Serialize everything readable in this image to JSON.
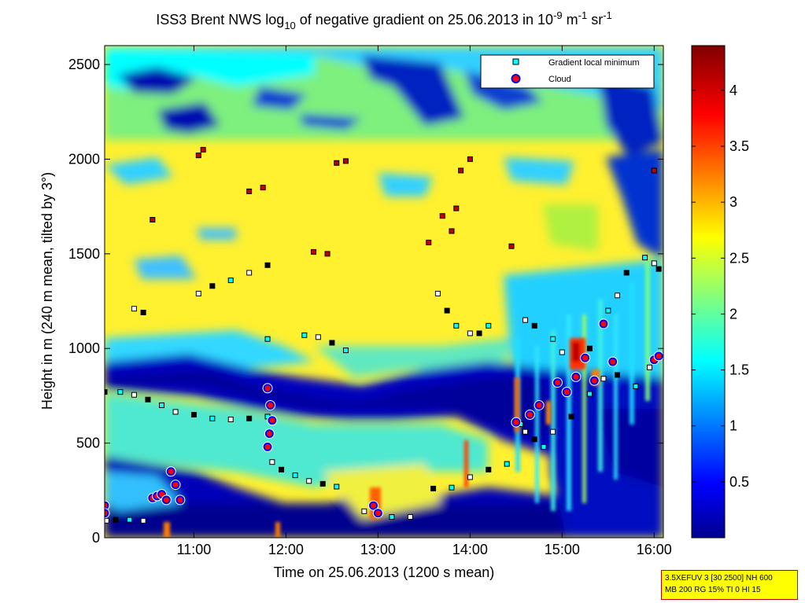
{
  "chart_data": {
    "type": "heatmap",
    "title": {
      "prefix": "ISS3 Brent NWS log",
      "prefix_sub": "10",
      "middle": " of negative gradient on 25.06.2013 in 10",
      "sup1": "-9",
      "unit1": " m",
      "sup2": "-1",
      "unit2": " sr",
      "sup3": "-1"
    },
    "xlabel": "Time on 25.06.2013 (1200 s mean)",
    "ylabel": "Height in m (240 m mean, tilted by 3°)",
    "x_ticks": [
      "11:00",
      "12:00",
      "13:00",
      "14:00",
      "15:00",
      "16:00"
    ],
    "x_tick_hours": [
      11,
      12,
      13,
      14,
      15,
      16
    ],
    "xlim_hours": [
      10.03,
      16.1
    ],
    "y_ticks": [
      0,
      500,
      1000,
      1500,
      2000,
      2500
    ],
    "y_tick_labels": [
      "0",
      "500",
      "1000",
      "1500",
      "2000",
      "2500"
    ],
    "ylim": [
      0,
      2600
    ],
    "colorbar": {
      "ticks": [
        0.5,
        1,
        1.5,
        2,
        2.5,
        3,
        3.5,
        4
      ],
      "tick_labels": [
        "0.5",
        "1",
        "1.5",
        "2",
        "2.5",
        "3",
        "3.5",
        "4"
      ],
      "range": [
        0,
        4.4
      ],
      "colormap": "jet"
    },
    "legend": [
      {
        "label": "Gradient local minimum",
        "marker": "square",
        "color": "#00ffff",
        "edge": "#000000"
      },
      {
        "label": "Cloud",
        "marker": "circle",
        "color": "#ff0000",
        "edge": "#0000ff"
      }
    ],
    "series": [
      {
        "name": "Gradient local minimum",
        "points": [
          [
            10.05,
            90
          ],
          [
            10.15,
            95
          ],
          [
            10.3,
            95
          ],
          [
            10.45,
            90
          ],
          [
            10.03,
            770
          ],
          [
            10.2,
            770
          ],
          [
            10.35,
            755
          ],
          [
            10.5,
            730
          ],
          [
            10.65,
            700
          ],
          [
            10.8,
            665
          ],
          [
            11.0,
            650
          ],
          [
            11.2,
            630
          ],
          [
            11.4,
            625
          ],
          [
            11.6,
            630
          ],
          [
            11.8,
            640
          ],
          [
            11.85,
            400
          ],
          [
            11.95,
            360
          ],
          [
            12.1,
            330
          ],
          [
            12.25,
            300
          ],
          [
            12.4,
            285
          ],
          [
            12.55,
            270
          ],
          [
            12.85,
            140
          ],
          [
            13.0,
            120
          ],
          [
            13.15,
            110
          ],
          [
            13.35,
            110
          ],
          [
            13.6,
            260
          ],
          [
            13.8,
            265
          ],
          [
            14.0,
            320
          ],
          [
            14.2,
            360
          ],
          [
            14.4,
            390
          ],
          [
            11.05,
            1290
          ],
          [
            11.2,
            1330
          ],
          [
            11.4,
            1360
          ],
          [
            11.6,
            1400
          ],
          [
            11.8,
            1440
          ],
          [
            12.2,
            1070
          ],
          [
            12.35,
            1060
          ],
          [
            12.5,
            1030
          ],
          [
            12.65,
            990
          ],
          [
            13.65,
            1290
          ],
          [
            13.75,
            1200
          ],
          [
            13.85,
            1120
          ],
          [
            14.0,
            1080
          ],
          [
            14.1,
            1080
          ],
          [
            14.2,
            1120
          ],
          [
            10.35,
            1210
          ],
          [
            10.45,
            1190
          ],
          [
            11.8,
            1050
          ],
          [
            14.6,
            1150
          ],
          [
            14.7,
            1120
          ],
          [
            14.9,
            1050
          ],
          [
            15.0,
            980
          ],
          [
            15.3,
            1000
          ],
          [
            15.5,
            1200
          ],
          [
            15.6,
            1280
          ],
          [
            15.7,
            1400
          ],
          [
            15.9,
            1480
          ],
          [
            16.0,
            1450
          ],
          [
            16.05,
            1420
          ],
          [
            14.55,
            600
          ],
          [
            14.6,
            560
          ],
          [
            14.7,
            520
          ],
          [
            14.8,
            480
          ],
          [
            14.9,
            560
          ],
          [
            15.1,
            640
          ],
          [
            15.3,
            760
          ],
          [
            15.45,
            840
          ],
          [
            15.6,
            860
          ],
          [
            15.8,
            800
          ],
          [
            15.95,
            900
          ]
        ]
      },
      {
        "name": "Cloud",
        "points": [
          [
            10.03,
            170
          ],
          [
            10.03,
            130
          ],
          [
            10.55,
            210
          ],
          [
            10.6,
            220
          ],
          [
            10.65,
            230
          ],
          [
            10.7,
            200
          ],
          [
            10.75,
            350
          ],
          [
            10.8,
            280
          ],
          [
            10.85,
            200
          ],
          [
            11.8,
            790
          ],
          [
            11.83,
            700
          ],
          [
            11.85,
            620
          ],
          [
            11.82,
            550
          ],
          [
            11.8,
            480
          ],
          [
            12.95,
            170
          ],
          [
            13.0,
            130
          ],
          [
            14.5,
            610
          ],
          [
            14.65,
            650
          ],
          [
            14.75,
            700
          ],
          [
            14.95,
            820
          ],
          [
            15.05,
            770
          ],
          [
            15.15,
            850
          ],
          [
            15.25,
            950
          ],
          [
            15.35,
            830
          ],
          [
            15.45,
            1130
          ],
          [
            15.55,
            930
          ],
          [
            16.0,
            940
          ],
          [
            16.05,
            960
          ]
        ]
      },
      {
        "name": "Dark markers",
        "points": [
          [
            10.55,
            1680
          ],
          [
            11.05,
            2020
          ],
          [
            11.1,
            2050
          ],
          [
            11.6,
            1830
          ],
          [
            11.75,
            1850
          ],
          [
            12.3,
            1510
          ],
          [
            12.45,
            1500
          ],
          [
            12.55,
            1980
          ],
          [
            12.65,
            1990
          ],
          [
            13.55,
            1560
          ],
          [
            13.7,
            1700
          ],
          [
            13.8,
            1620
          ],
          [
            13.85,
            1740
          ],
          [
            13.9,
            1940
          ],
          [
            14.0,
            2000
          ],
          [
            14.45,
            1540
          ],
          [
            16.0,
            1940
          ]
        ]
      }
    ],
    "footnote": [
      "3.5XEFUV 3 [30 2500] NH 600",
      "MB 200 RG 15% TI 0 HI 15"
    ]
  }
}
